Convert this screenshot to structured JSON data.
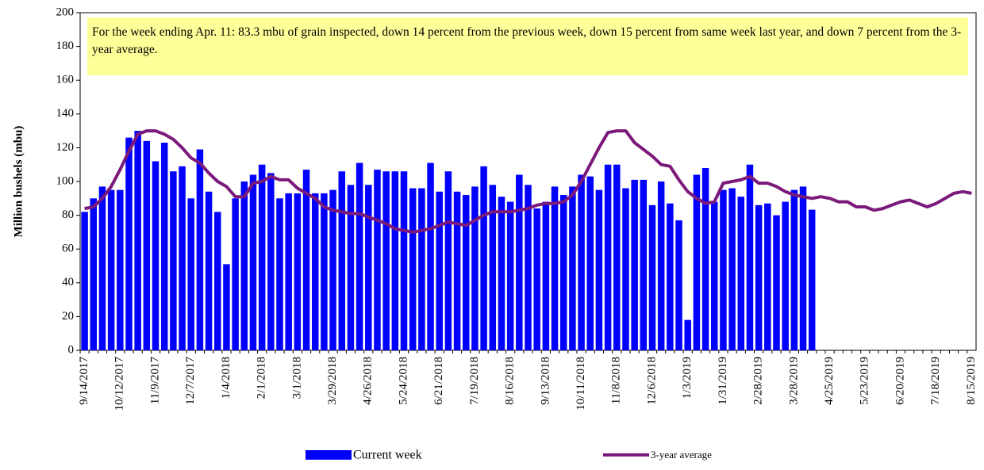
{
  "chart_data": {
    "type": "bar-line",
    "annotation": "For the week ending Apr. 11: 83.3 mbu of grain inspected, down 14 percent from the previous week, down 15 percent from same week last year, and down 7 percent from the 3-year average.",
    "y_label": "Million bushels (mbu)",
    "ylim": [
      0,
      200
    ],
    "yticks": [
      0,
      20,
      40,
      60,
      80,
      100,
      120,
      140,
      160,
      180,
      200
    ],
    "categories": [
      "9/14/2017",
      null,
      null,
      null,
      "10/12/2017",
      null,
      null,
      null,
      "11/9/2017",
      null,
      null,
      null,
      "12/7/2017",
      null,
      null,
      null,
      "1/4/2018",
      null,
      null,
      null,
      "2/1/2018",
      null,
      null,
      null,
      "3/1/2018",
      null,
      null,
      null,
      "3/29/2018",
      null,
      null,
      null,
      "4/26/2018",
      null,
      null,
      null,
      "5/24/2018",
      null,
      null,
      null,
      "6/21/2018",
      null,
      null,
      null,
      "7/19/2018",
      null,
      null,
      null,
      "8/16/2018",
      null,
      null,
      null,
      "9/13/2018",
      null,
      null,
      null,
      "10/11/2018",
      null,
      null,
      null,
      "11/8/2018",
      null,
      null,
      null,
      "12/6/2018",
      null,
      null,
      null,
      "1/3/2019",
      null,
      null,
      null,
      "1/31/2019",
      null,
      null,
      null,
      "2/28/2019",
      null,
      null,
      null,
      "3/28/2019",
      null,
      null,
      null,
      "4/25/2019",
      null,
      null,
      null,
      "5/23/2019",
      null,
      null,
      null,
      "6/20/2019",
      null,
      null,
      null,
      "7/18/2019",
      null,
      null,
      null,
      "8/15/2019"
    ],
    "series": [
      {
        "name": "Current week",
        "type": "bar",
        "color": "#0000ff",
        "values": [
          82,
          90,
          97,
          95,
          95,
          126,
          130,
          124,
          112,
          123,
          106,
          109,
          90,
          119,
          94,
          82,
          51,
          90,
          100,
          104,
          110,
          105,
          90,
          93,
          93,
          107,
          93,
          93,
          95,
          106,
          98,
          111,
          98,
          107,
          106,
          106,
          106,
          96,
          96,
          111,
          94,
          106,
          94,
          92,
          97,
          109,
          98,
          91,
          88,
          104,
          98,
          84,
          88,
          97,
          92,
          97,
          104,
          103,
          95,
          110,
          110,
          96,
          101,
          101,
          86,
          100,
          87,
          77,
          18,
          104,
          108,
          88,
          95,
          96,
          91,
          110,
          86,
          87,
          80,
          88,
          95,
          97,
          83.3,
          null,
          null,
          null,
          null,
          null,
          null,
          null,
          null,
          null,
          null,
          null,
          null,
          null,
          null,
          null,
          null,
          null,
          null
        ]
      },
      {
        "name": "3-year average",
        "type": "line",
        "color": "#7b1a7b",
        "values": [
          84,
          85,
          90,
          97,
          107,
          118,
          128,
          130,
          130,
          128,
          125,
          120,
          114,
          111,
          105,
          100,
          97,
          91,
          91,
          99,
          100,
          103,
          101,
          101,
          96,
          93,
          90,
          85,
          83,
          82,
          81,
          81,
          79,
          77,
          75,
          72,
          71,
          70,
          71,
          72,
          74,
          76,
          75,
          74,
          77,
          80,
          82,
          82,
          82,
          83,
          84,
          86,
          87,
          87,
          88,
          92,
          100,
          110,
          120,
          129,
          130,
          130,
          123,
          119,
          115,
          110,
          109,
          101,
          94,
          90,
          87,
          88,
          99,
          100,
          101,
          103,
          99,
          99,
          97,
          94,
          92,
          91,
          90,
          91,
          90,
          88,
          88,
          85,
          85,
          83,
          84,
          86,
          88,
          89,
          87,
          85,
          87,
          90,
          93,
          94,
          93
        ]
      }
    ]
  }
}
